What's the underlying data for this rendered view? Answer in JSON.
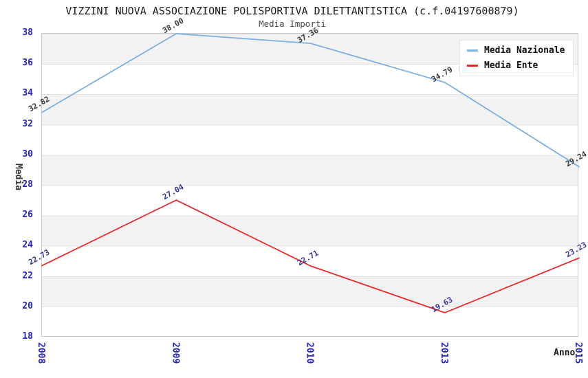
{
  "title": "VIZZINI NUOVA ASSOCIAZIONE POLISPORTIVA DILETTANTISTICA (c.f.04197600879)",
  "subtitle": "Media Importi",
  "colors": {
    "tick_text": "#2222cc",
    "plot_band_gray": "#f2f2f2",
    "plot_band_white": "#ffffff",
    "plot_border": "#c9c9c9",
    "title_text": "#1a1a1a"
  },
  "chart_data": {
    "type": "line",
    "x": [
      "2008",
      "2009",
      "2010",
      "2013",
      "2015"
    ],
    "xlabel": "Anno",
    "ylabel": "Media",
    "ylim": [
      18,
      38
    ],
    "yticks": [
      18,
      20,
      22,
      24,
      26,
      28,
      30,
      32,
      34,
      36,
      38
    ],
    "grid": "horizontal-bands-alternating",
    "legend_position": "top-right",
    "series": [
      {
        "name": "Media Nazionale",
        "color": "#7cafe1",
        "label_color": "#3a3a3a",
        "values": [
          32.82,
          38.0,
          37.36,
          34.79,
          29.24
        ],
        "labels": [
          "32.82",
          "38.00",
          "37.36",
          "34.79",
          "29.24"
        ]
      },
      {
        "name": "Media Ente",
        "color": "#ee2222",
        "label_color": "#333399",
        "values": [
          22.73,
          27.04,
          22.71,
          19.63,
          23.23
        ],
        "labels": [
          "22.73",
          "27.04",
          "22.71",
          "19.63",
          "23.23"
        ]
      }
    ]
  }
}
